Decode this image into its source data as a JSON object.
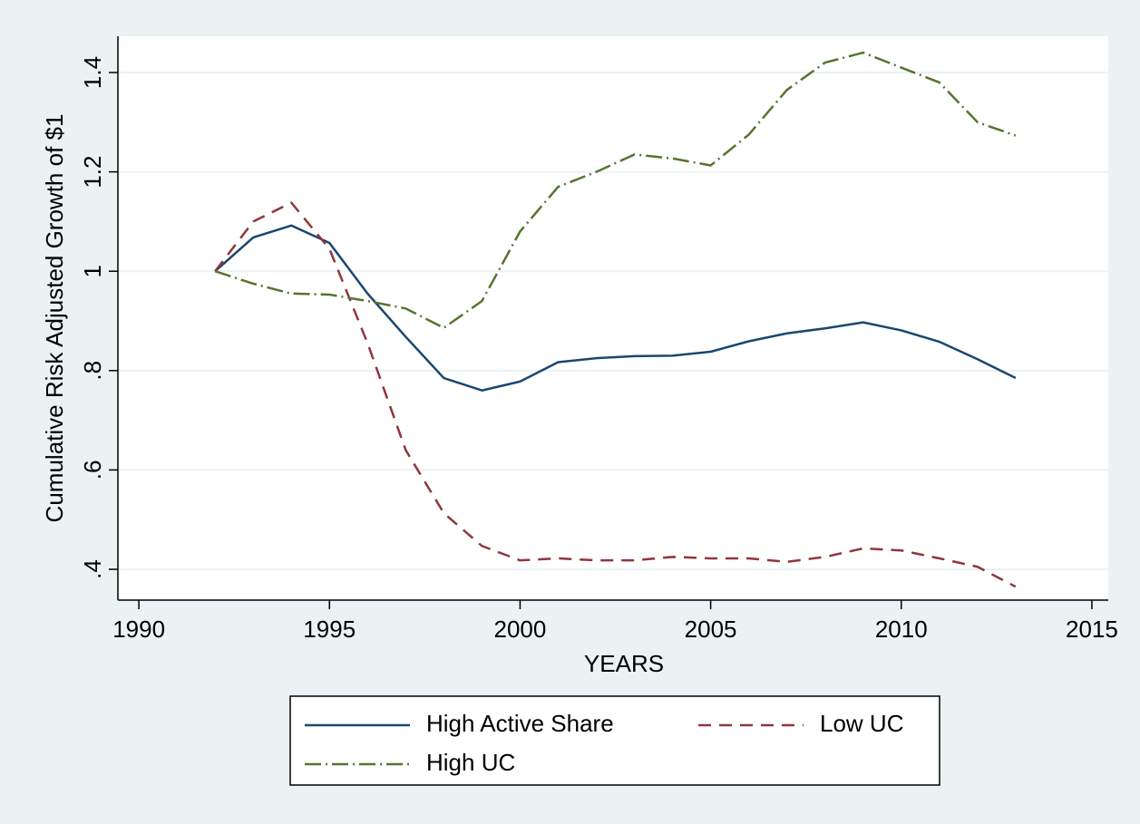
{
  "chart_data": {
    "type": "line",
    "x_label": "YEARS",
    "y_label": "Cumulative Risk Adjusted Growth of $1",
    "x": [
      1992,
      1993,
      1994,
      1995,
      1996,
      1997,
      1998,
      1999,
      2000,
      2001,
      2002,
      2003,
      2004,
      2005,
      2006,
      2007,
      2008,
      2009,
      2010,
      2011,
      2012,
      2013
    ],
    "series": [
      {
        "name": "High Active Share",
        "color": "#1a476f",
        "dash": "none",
        "values": [
          1.0,
          1.068,
          1.092,
          1.057,
          0.955,
          0.868,
          0.785,
          0.76,
          0.778,
          0.817,
          0.825,
          0.829,
          0.83,
          0.838,
          0.859,
          0.875,
          0.885,
          0.897,
          0.881,
          0.858,
          0.823,
          0.785
        ]
      },
      {
        "name": "Low UC",
        "color": "#90353b",
        "dash": "14 9",
        "values": [
          1.0,
          1.1,
          1.138,
          1.045,
          0.855,
          0.64,
          0.513,
          0.447,
          0.418,
          0.422,
          0.418,
          0.418,
          0.425,
          0.422,
          0.422,
          0.415,
          0.425,
          0.442,
          0.438,
          0.422,
          0.405,
          0.365
        ]
      },
      {
        "name": "High UC",
        "color": "#55752f",
        "dash": "18 5 2 5",
        "values": [
          1.0,
          0.975,
          0.955,
          0.953,
          0.94,
          0.925,
          0.886,
          0.94,
          1.08,
          1.17,
          1.2,
          1.235,
          1.227,
          1.213,
          1.275,
          1.365,
          1.42,
          1.44,
          1.41,
          1.38,
          1.3,
          1.273
        ]
      }
    ],
    "xlim": [
      1989.45,
      2015.43
    ],
    "ylim": [
      0.338,
      1.473
    ],
    "xticks": [
      1990,
      1995,
      2000,
      2005,
      2010,
      2015
    ],
    "yticks": [
      {
        "value": 0.4,
        "label": ".4"
      },
      {
        "value": 0.6,
        "label": ".6"
      },
      {
        "value": 0.8,
        "label": ".8"
      },
      1,
      1.2,
      1.4
    ],
    "grid": true,
    "legend": "bottom"
  }
}
